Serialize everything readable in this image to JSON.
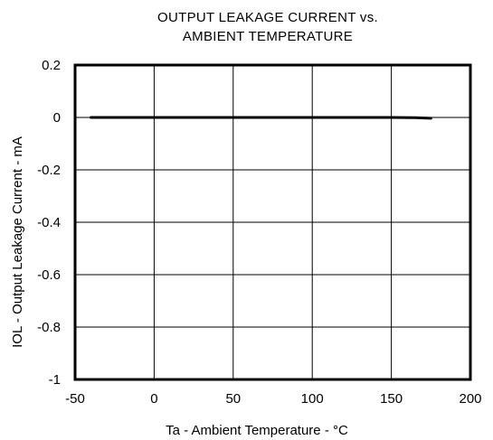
{
  "chart_data": {
    "type": "line",
    "title_lines": [
      "OUTPUT  LEAKAGE  CURRENT  vs.",
      "AMBIENT  TEMPERATURE"
    ],
    "xlabel": "Ta - Ambient Temperature  - °C",
    "ylabel": "IOL - Output Leakage  Current - mA",
    "xlim": [
      -50,
      200
    ],
    "ylim": [
      -1,
      0.2
    ],
    "xticks": [
      -50,
      0,
      50,
      100,
      150,
      200
    ],
    "xtick_labels": [
      "-50",
      "0",
      "50",
      "100",
      "150",
      "200"
    ],
    "yticks": [
      0.2,
      0,
      -0.2,
      -0.4,
      -0.6,
      -0.8,
      -1
    ],
    "ytick_labels": [
      "0.2",
      "0",
      "-0.2",
      "-0.4",
      "-0.6",
      "-0.8",
      "-1"
    ],
    "grid": true,
    "legend": "none",
    "series": [
      {
        "x": [
          -40,
          0,
          50,
          100,
          125,
          150,
          165,
          175
        ],
        "y": [
          0,
          0,
          0,
          0,
          0,
          0,
          -0.001,
          -0.003
        ],
        "color": "#000000"
      }
    ]
  }
}
